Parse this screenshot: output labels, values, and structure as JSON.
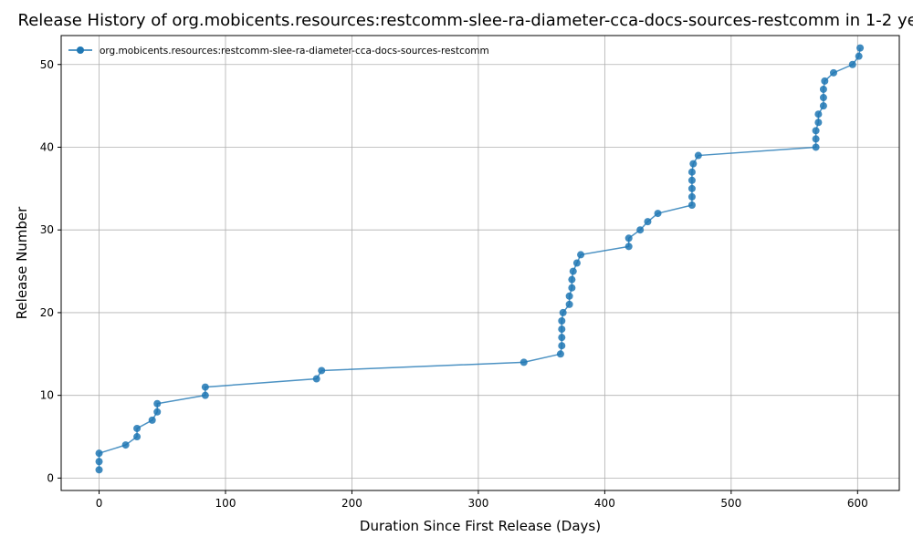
{
  "chart_data": {
    "type": "line",
    "title": "Release History of org.mobicents.resources:restcomm-slee-ra-diameter-cca-docs-sources-restcomm in 1-2 years",
    "xlabel": "Duration Since First Release (Days)",
    "ylabel": "Release Number",
    "xlim": [
      -30,
      633
    ],
    "ylim": [
      -1.5,
      53.5
    ],
    "xticks": [
      0,
      100,
      200,
      300,
      400,
      500,
      600
    ],
    "yticks": [
      0,
      10,
      20,
      30,
      40,
      50
    ],
    "grid": true,
    "legend_position": "top-left",
    "series": [
      {
        "name": "org.mobicents.resources:restcomm-slee-ra-diameter-cca-docs-sources-restcomm",
        "color": "#1f77b4",
        "marker": "circle",
        "x": [
          0,
          0,
          0,
          21,
          30,
          30,
          42,
          46,
          46,
          84,
          84,
          172,
          176,
          336,
          365,
          366,
          366,
          366,
          366,
          367,
          372,
          372,
          374,
          374,
          375,
          378,
          381,
          419,
          419,
          428,
          434,
          442,
          469,
          469,
          469,
          469,
          469,
          470,
          474,
          567,
          567,
          567,
          569,
          569,
          573,
          573,
          573,
          574,
          581,
          596,
          601,
          602
        ],
        "y": [
          1,
          2,
          3,
          4,
          5,
          6,
          7,
          8,
          9,
          10,
          11,
          12,
          13,
          14,
          15,
          16,
          17,
          18,
          19,
          20,
          21,
          22,
          23,
          24,
          25,
          26,
          27,
          28,
          29,
          30,
          31,
          32,
          33,
          34,
          35,
          36,
          37,
          38,
          39,
          40,
          41,
          42,
          43,
          44,
          45,
          46,
          47,
          48,
          49,
          50,
          51,
          52
        ]
      }
    ]
  }
}
